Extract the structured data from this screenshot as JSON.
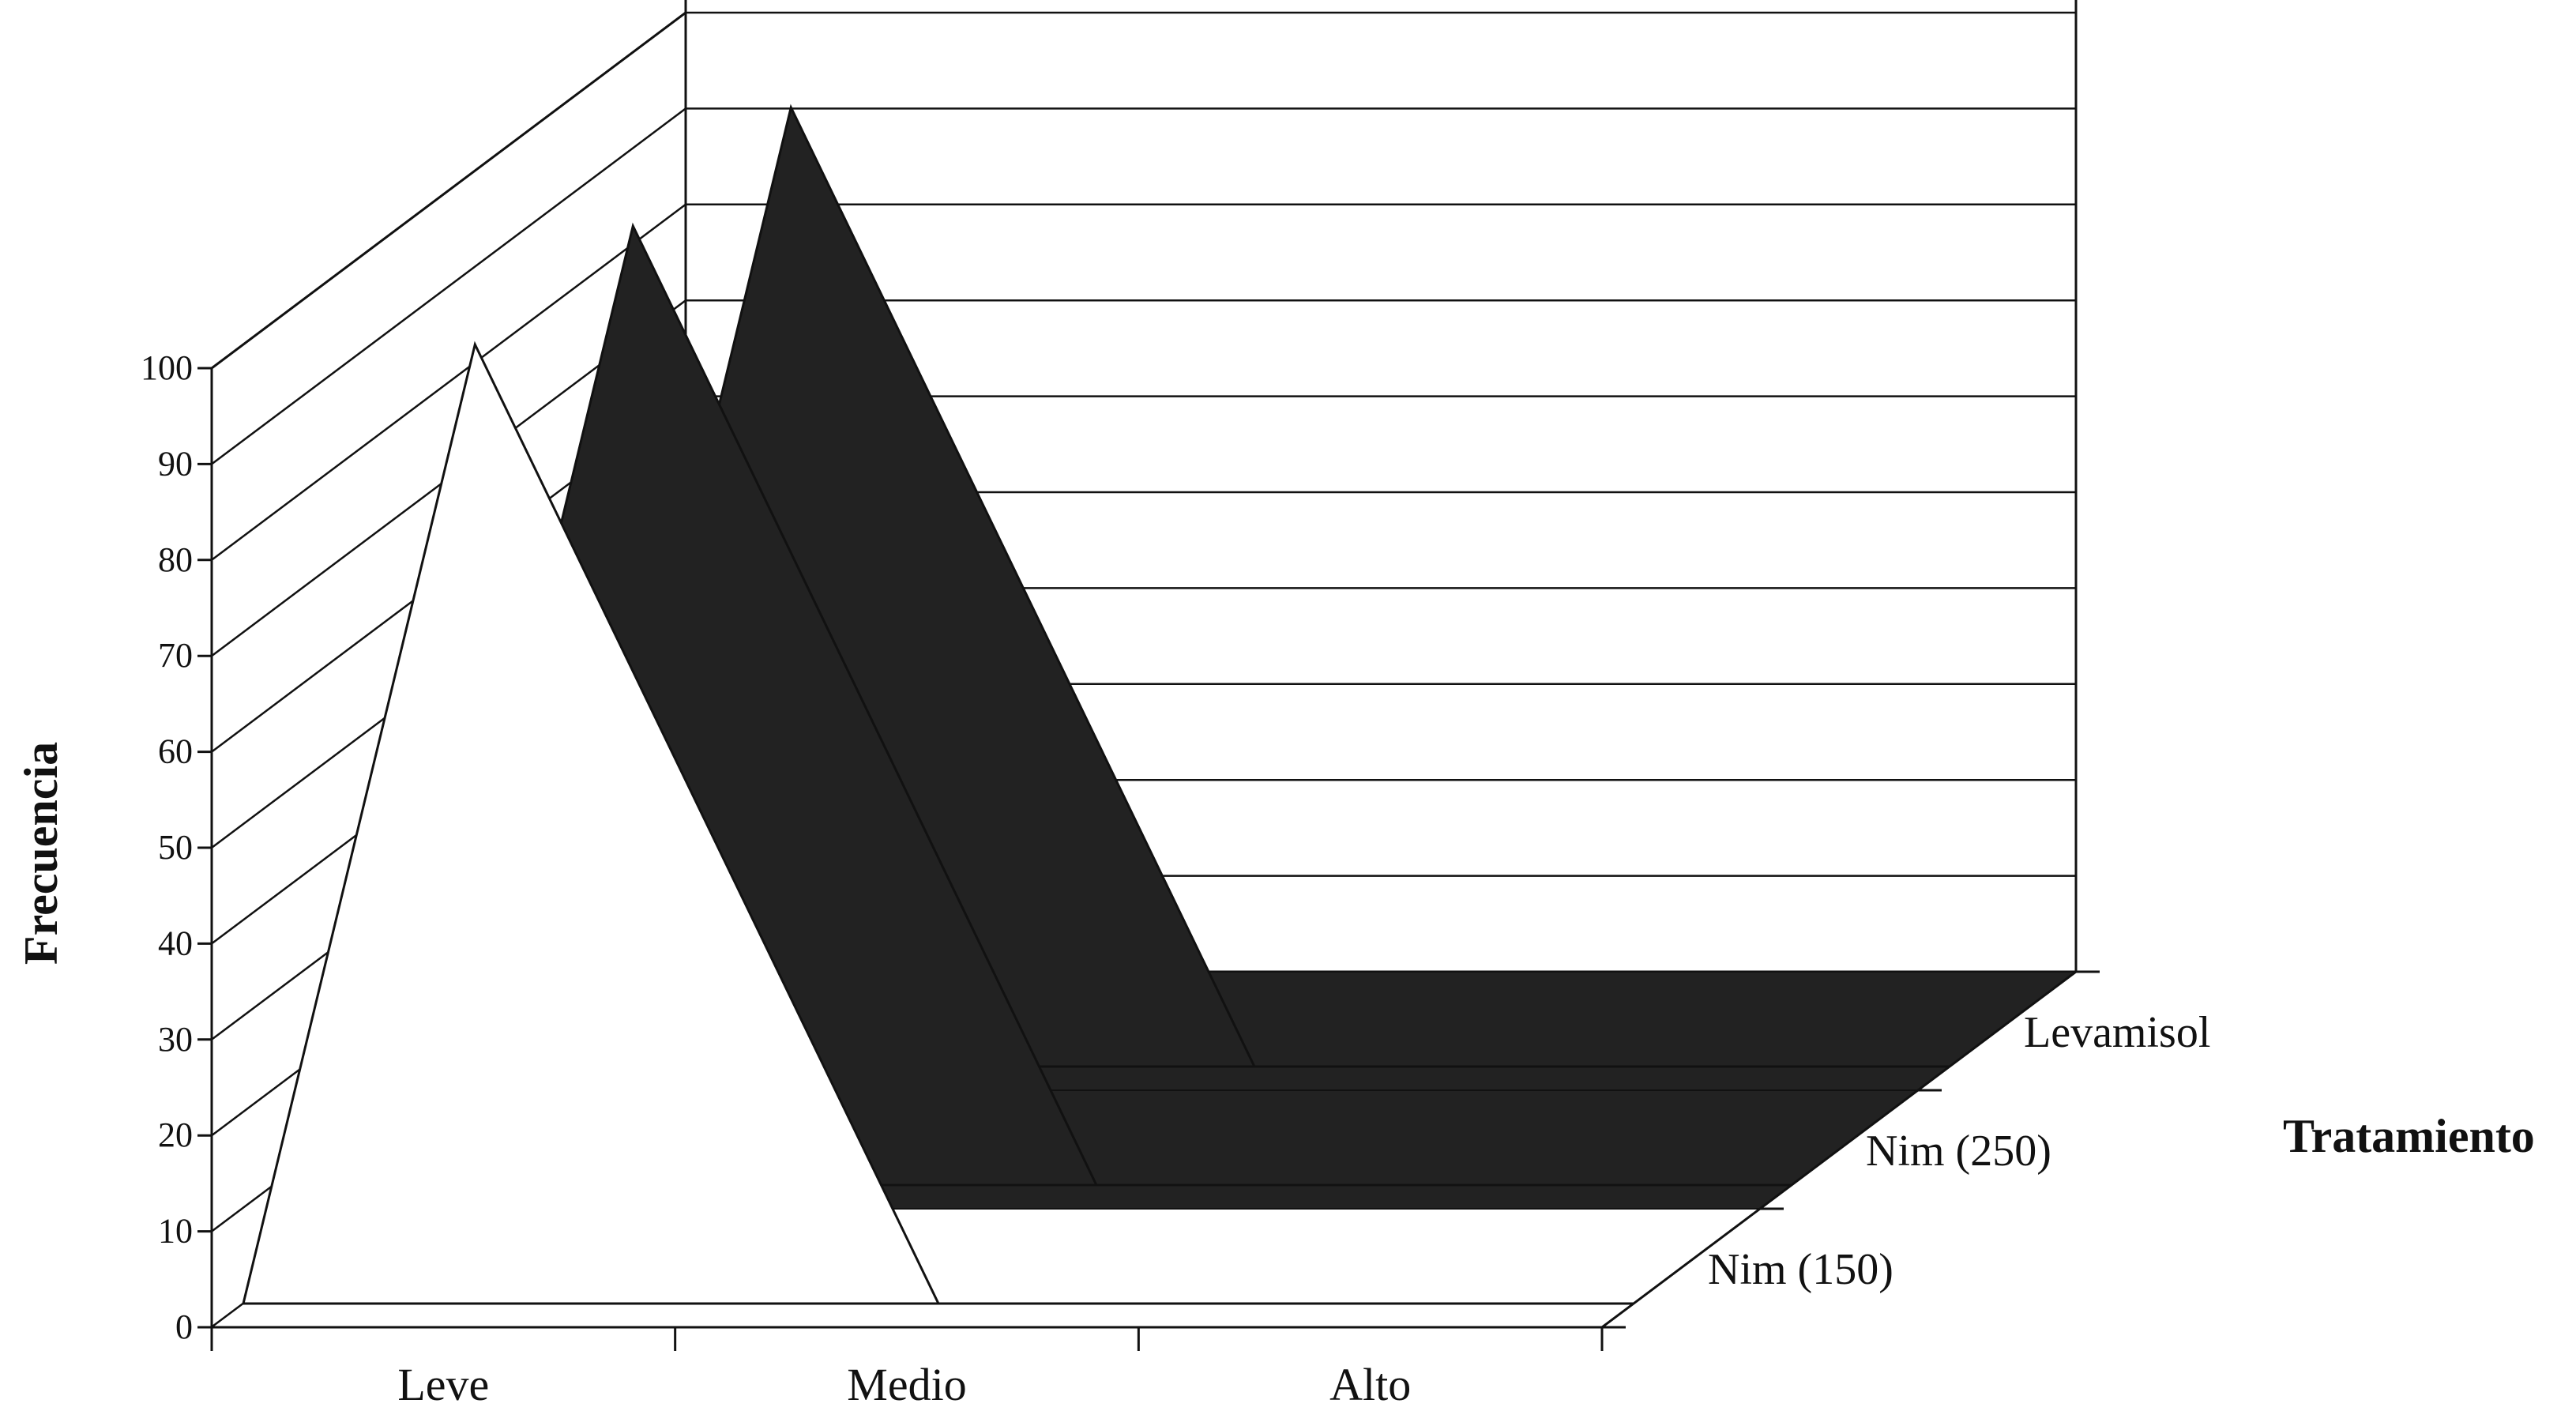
{
  "chart_data": {
    "type": "area",
    "subtype": "3d-area",
    "xlabel": "",
    "ylabel": "Frecuencia",
    "zlabel": "Tratamiento",
    "ylim": [
      0,
      100
    ],
    "yticks": [
      "0",
      "10",
      "20",
      "30",
      "40",
      "50",
      "60",
      "70",
      "80",
      "90",
      "100"
    ],
    "categories": [
      "Leve",
      "Medio",
      "Alto"
    ],
    "series": [
      {
        "name": "Nim (150)",
        "values": [
          100,
          0,
          0
        ],
        "color": "#ffffff"
      },
      {
        "name": "Nim (250)",
        "values": [
          100,
          0,
          0
        ],
        "color": "#222222"
      },
      {
        "name": "Levamisol",
        "values": [
          100,
          0,
          0
        ],
        "color": "#222222"
      }
    ],
    "grid": true,
    "legend": "none"
  }
}
